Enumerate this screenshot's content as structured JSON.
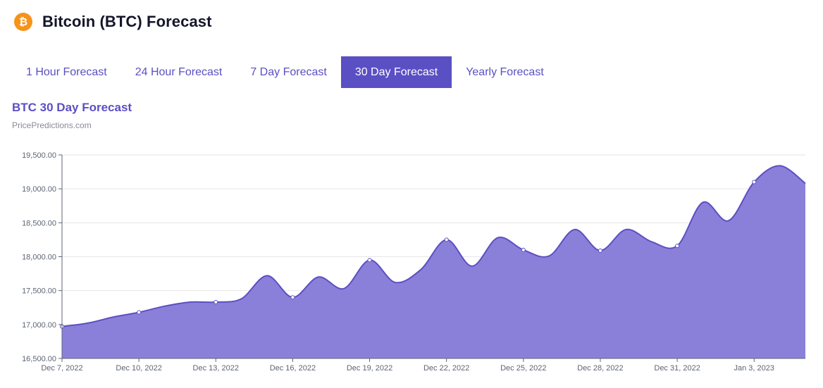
{
  "header": {
    "icon": "bitcoin-icon",
    "icon_glyph": "₿",
    "title": "Bitcoin (BTC) Forecast"
  },
  "tabs": [
    {
      "label": "1 Hour Forecast",
      "active": false
    },
    {
      "label": "24 Hour Forecast",
      "active": false
    },
    {
      "label": "7 Day Forecast",
      "active": false
    },
    {
      "label": "30 Day Forecast",
      "active": true
    },
    {
      "label": "Yearly Forecast",
      "active": false
    }
  ],
  "colors": {
    "accent": "#5b4fc4",
    "area_fill": "#8b80d9",
    "line": "#5b4fc4",
    "bitcoin": "#f7931a"
  },
  "chart_data": {
    "type": "area",
    "title": "BTC 30 Day Forecast",
    "subtitle": "PricePredictions.com",
    "xlabel": "",
    "ylabel": "",
    "ylim": [
      16500,
      19500
    ],
    "y_ticks": [
      "19,500.00",
      "19,000.00",
      "18,500.00",
      "18,000.00",
      "17,500.00",
      "17,000.00",
      "16,500.00"
    ],
    "y_tick_values": [
      19500,
      19000,
      18500,
      18000,
      17500,
      17000,
      16500
    ],
    "x_ticks": [
      "Dec 7, 2022",
      "Dec 10, 2022",
      "Dec 13, 2022",
      "Dec 16, 2022",
      "Dec 19, 2022",
      "Dec 22, 2022",
      "Dec 25, 2022",
      "Dec 28, 2022",
      "Dec 31, 2022",
      "Jan 3, 2023"
    ],
    "x_tick_dates": [
      "2022-12-07",
      "2022-12-10",
      "2022-12-13",
      "2022-12-16",
      "2022-12-19",
      "2022-12-22",
      "2022-12-25",
      "2022-12-28",
      "2022-12-31",
      "2023-01-03"
    ],
    "x_range": [
      "2022-12-07",
      "2023-01-05"
    ],
    "grid": true,
    "legend": "none",
    "series": [
      {
        "x": [
          "2022-12-07",
          "2022-12-08",
          "2022-12-09",
          "2022-12-10",
          "2022-12-11",
          "2022-12-12",
          "2022-12-13",
          "2022-12-14",
          "2022-12-15",
          "2022-12-16",
          "2022-12-17",
          "2022-12-18",
          "2022-12-19",
          "2022-12-20",
          "2022-12-21",
          "2022-12-22",
          "2022-12-23",
          "2022-12-24",
          "2022-12-25",
          "2022-12-26",
          "2022-12-27",
          "2022-12-28",
          "2022-12-29",
          "2022-12-30",
          "2022-12-31",
          "2023-01-01",
          "2023-01-02",
          "2023-01-03",
          "2023-01-04",
          "2023-01-05"
        ],
        "values": [
          16970,
          17020,
          17110,
          17180,
          17270,
          17330,
          17330,
          17380,
          17720,
          17400,
          17700,
          17530,
          17950,
          17620,
          17810,
          18250,
          17860,
          18280,
          18100,
          18010,
          18400,
          18090,
          18400,
          18220,
          18160,
          18800,
          18530,
          19100,
          19340,
          19080
        ],
        "markers": [
          true,
          false,
          false,
          true,
          false,
          false,
          true,
          false,
          false,
          true,
          false,
          false,
          true,
          false,
          false,
          true,
          false,
          false,
          true,
          false,
          false,
          true,
          false,
          false,
          true,
          false,
          false,
          true,
          false,
          false
        ]
      }
    ]
  }
}
